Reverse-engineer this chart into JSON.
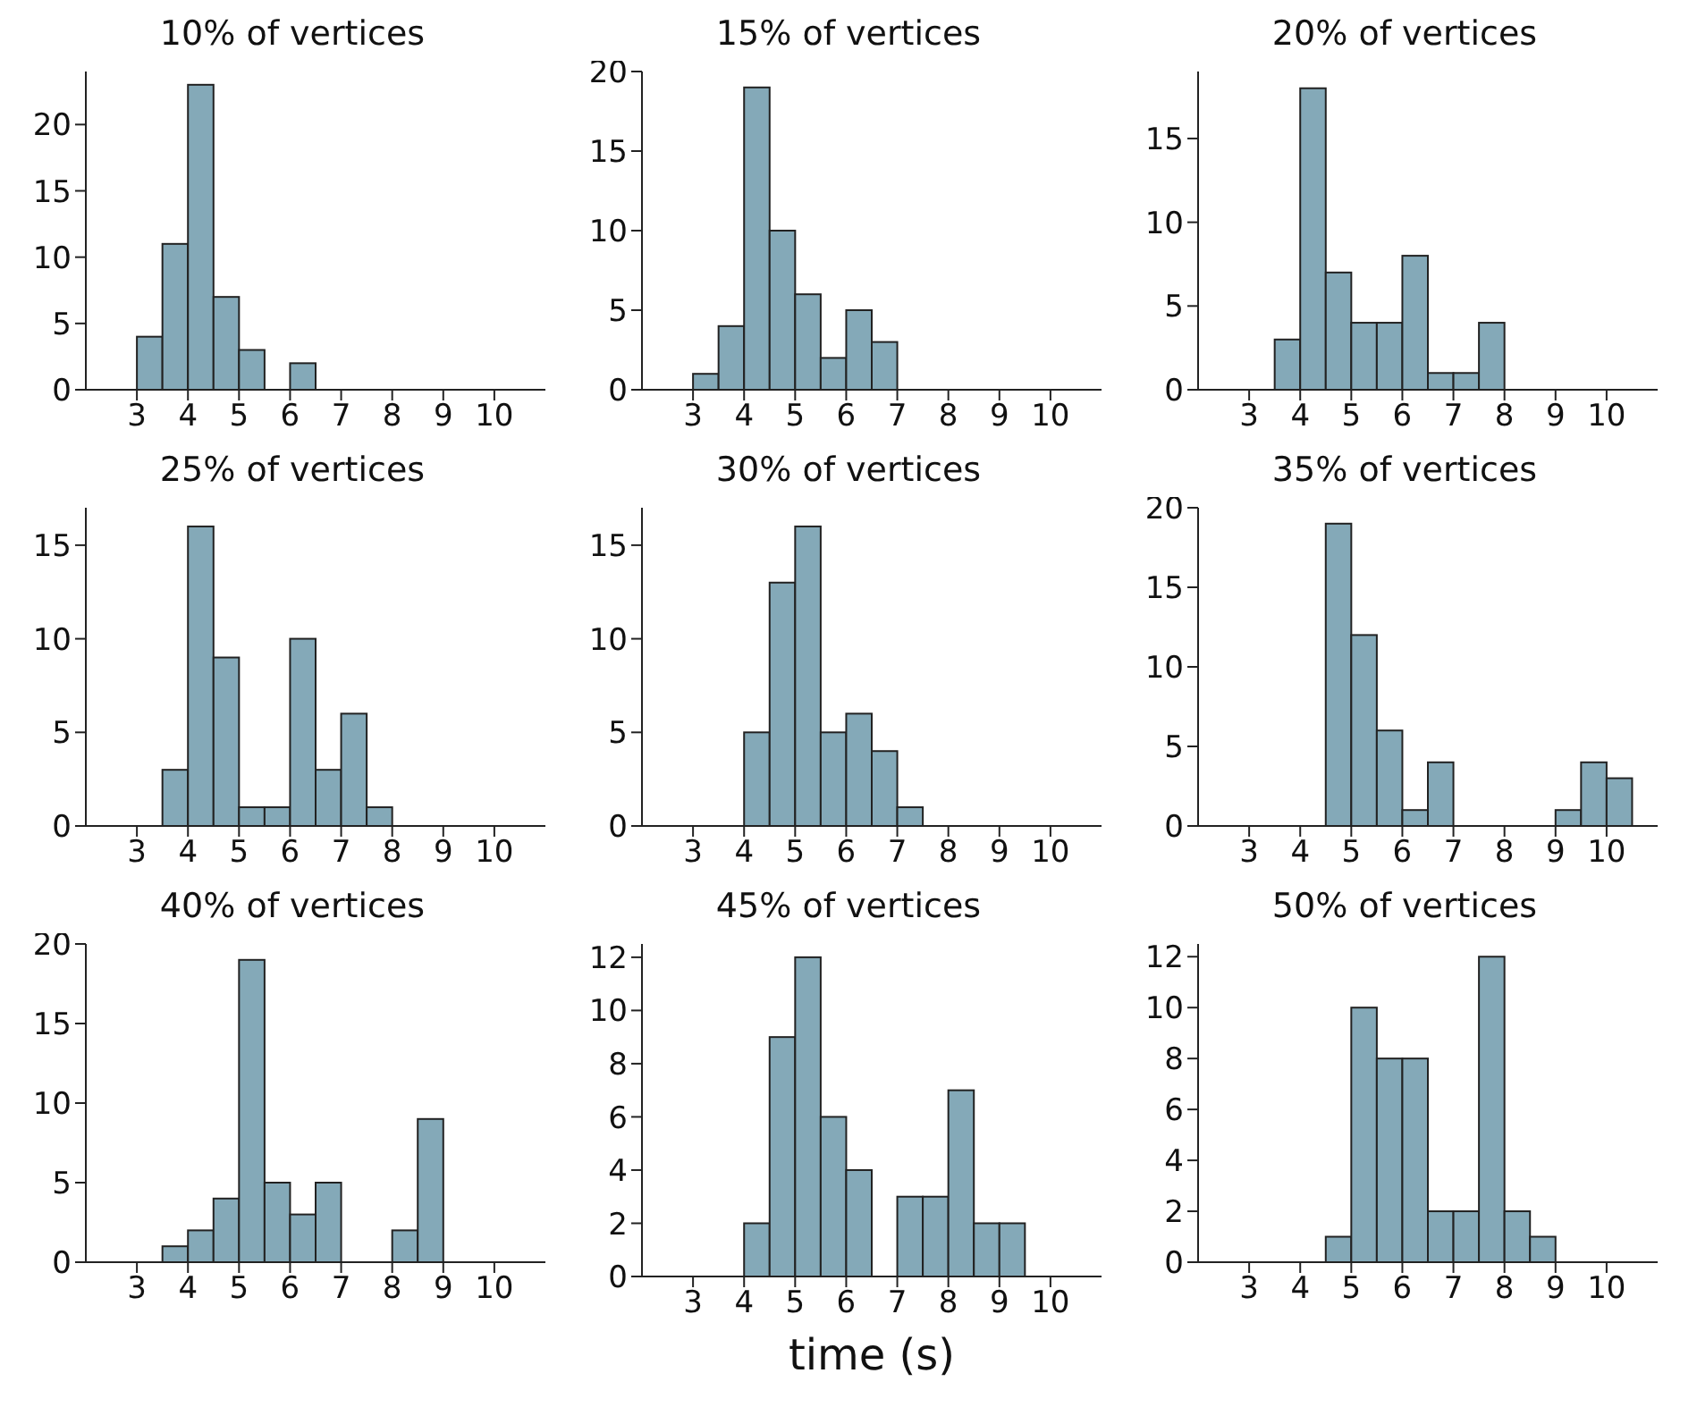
{
  "chart_data": [
    {
      "type": "histogram",
      "title": "10% of vertices",
      "bins": [
        3,
        3.5,
        4,
        4.5,
        5,
        5.5,
        6,
        6.5
      ],
      "values": [
        4,
        11,
        23,
        7,
        3,
        0,
        2
      ],
      "color": "#84a9b8",
      "xlim": [
        2,
        11
      ],
      "xticks": [
        3,
        4,
        5,
        6,
        7,
        8,
        9,
        10
      ],
      "ylim": [
        0,
        24
      ],
      "yticks": [
        0,
        5,
        10,
        15,
        20
      ],
      "grid": false
    },
    {
      "type": "histogram",
      "title": "15% of vertices",
      "bins": [
        3,
        3.5,
        4,
        4.5,
        5,
        5.5,
        6,
        6.5,
        7
      ],
      "values": [
        1,
        4,
        19,
        10,
        6,
        2,
        5,
        3
      ],
      "color": "#84a9b8",
      "xlim": [
        2,
        11
      ],
      "xticks": [
        3,
        4,
        5,
        6,
        7,
        8,
        9,
        10
      ],
      "ylim": [
        0,
        20
      ],
      "yticks": [
        0,
        5,
        10,
        15,
        20
      ],
      "grid": false
    },
    {
      "type": "histogram",
      "title": "20% of vertices",
      "bins": [
        3.5,
        4,
        4.5,
        5,
        5.5,
        6,
        6.5,
        7,
        7.5,
        8
      ],
      "values": [
        3,
        18,
        7,
        4,
        4,
        8,
        1,
        1,
        4
      ],
      "color": "#84a9b8",
      "xlim": [
        2,
        11
      ],
      "xticks": [
        3,
        4,
        5,
        6,
        7,
        8,
        9,
        10
      ],
      "ylim": [
        0,
        19
      ],
      "yticks": [
        0,
        5,
        10,
        15
      ],
      "grid": false
    },
    {
      "type": "histogram",
      "title": "25% of vertices",
      "bins": [
        3.5,
        4,
        4.5,
        5,
        5.5,
        6,
        6.5,
        7,
        7.5,
        8
      ],
      "values": [
        3,
        16,
        9,
        1,
        1,
        10,
        3,
        6,
        1
      ],
      "color": "#84a9b8",
      "xlim": [
        2,
        11
      ],
      "xticks": [
        3,
        4,
        5,
        6,
        7,
        8,
        9,
        10
      ],
      "ylim": [
        0,
        17
      ],
      "yticks": [
        0,
        5,
        10,
        15
      ],
      "grid": false
    },
    {
      "type": "histogram",
      "title": "30% of vertices",
      "bins": [
        4,
        4.5,
        5,
        5.5,
        6,
        6.5,
        7,
        7.5
      ],
      "values": [
        5,
        13,
        16,
        5,
        6,
        4,
        1
      ],
      "color": "#84a9b8",
      "xlim": [
        2,
        11
      ],
      "xticks": [
        3,
        4,
        5,
        6,
        7,
        8,
        9,
        10
      ],
      "ylim": [
        0,
        17
      ],
      "yticks": [
        0,
        5,
        10,
        15
      ],
      "grid": false
    },
    {
      "type": "histogram",
      "title": "35% of vertices",
      "bins": [
        4.5,
        5,
        5.5,
        6,
        6.5,
        7,
        7.5,
        8,
        8.5,
        9,
        9.5,
        10,
        10.5
      ],
      "values": [
        19,
        12,
        6,
        1,
        4,
        0,
        0,
        0,
        0,
        1,
        4,
        3
      ],
      "color": "#84a9b8",
      "xlim": [
        2,
        11
      ],
      "xticks": [
        3,
        4,
        5,
        6,
        7,
        8,
        9,
        10
      ],
      "ylim": [
        0,
        20
      ],
      "yticks": [
        0,
        5,
        10,
        15,
        20
      ],
      "grid": false
    },
    {
      "type": "histogram",
      "title": "40% of vertices",
      "bins": [
        3.5,
        4,
        4.5,
        5,
        5.5,
        6,
        6.5,
        7,
        7.5,
        8,
        8.5,
        9
      ],
      "values": [
        1,
        2,
        4,
        19,
        5,
        3,
        5,
        0,
        0,
        2,
        9
      ],
      "color": "#84a9b8",
      "xlim": [
        2,
        11
      ],
      "xticks": [
        3,
        4,
        5,
        6,
        7,
        8,
        9,
        10
      ],
      "ylim": [
        0,
        20
      ],
      "yticks": [
        0,
        5,
        10,
        15,
        20
      ],
      "grid": false
    },
    {
      "type": "histogram",
      "title": "45% of vertices",
      "xlabel": "time (s)",
      "bins": [
        4,
        4.5,
        5,
        5.5,
        6,
        6.5,
        7,
        7.5,
        8,
        8.5,
        9,
        9.5
      ],
      "values": [
        2,
        9,
        12,
        6,
        4,
        0,
        3,
        3,
        7,
        2,
        2
      ],
      "color": "#84a9b8",
      "xlim": [
        2,
        11
      ],
      "xticks": [
        3,
        4,
        5,
        6,
        7,
        8,
        9,
        10
      ],
      "ylim": [
        0,
        12.5
      ],
      "yticks": [
        0,
        2,
        4,
        6,
        8,
        10,
        12
      ],
      "grid": false
    },
    {
      "type": "histogram",
      "title": "50% of vertices",
      "bins": [
        4.5,
        5,
        5.5,
        6,
        6.5,
        7,
        7.5,
        8,
        8.5,
        9
      ],
      "values": [
        1,
        10,
        8,
        8,
        2,
        2,
        12,
        2,
        1
      ],
      "color": "#84a9b8",
      "xlim": [
        2,
        11
      ],
      "xticks": [
        3,
        4,
        5,
        6,
        7,
        8,
        9,
        10
      ],
      "ylim": [
        0,
        12.5
      ],
      "yticks": [
        0,
        2,
        4,
        6,
        8,
        10,
        12
      ],
      "grid": false
    }
  ]
}
